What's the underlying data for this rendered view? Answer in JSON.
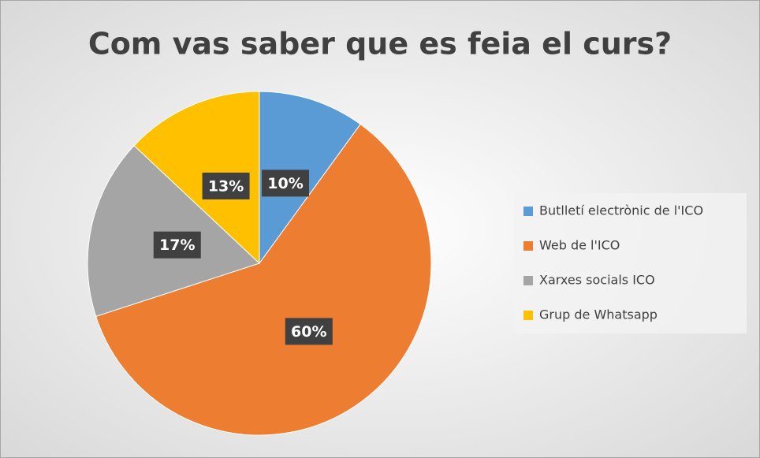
{
  "chart_data": {
    "type": "pie",
    "title": "Com vas saber que es feia el curs?",
    "categories": [
      "Butlletí electrònic de l'ICO",
      "Web de l'ICO",
      "Xarxes socials ICO",
      "Grup de Whatsapp"
    ],
    "values": [
      10,
      60,
      17,
      13
    ],
    "value_labels": [
      "10%",
      "60%",
      "17%",
      "13%"
    ],
    "colors": [
      "#5b9bd5",
      "#ed7d31",
      "#a5a5a5",
      "#ffc000"
    ],
    "legend": "right"
  }
}
